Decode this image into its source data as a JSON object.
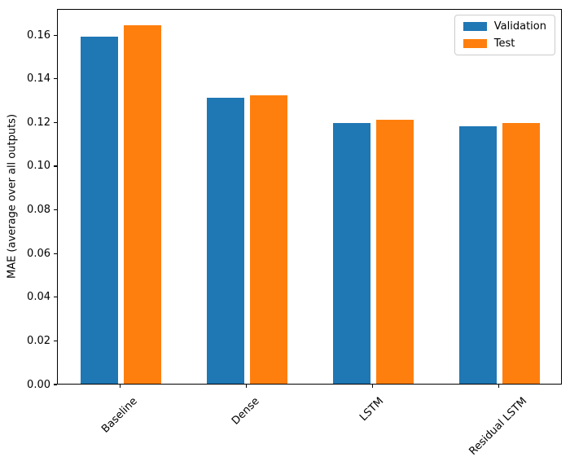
{
  "chart_data": {
    "type": "bar",
    "categories": [
      "Baseline",
      "Dense",
      "LSTM",
      "Residual LSTM"
    ],
    "series": [
      {
        "name": "Validation",
        "color": "#1f77b4",
        "values": [
          0.159,
          0.131,
          0.1195,
          0.118
        ]
      },
      {
        "name": "Test",
        "color": "#ff7f0e",
        "values": [
          0.164,
          0.132,
          0.121,
          0.1195
        ]
      }
    ],
    "ylabel": "MAE (average over all outputs)",
    "ylim": [
      0,
      0.172
    ],
    "yticks": [
      0.0,
      0.02,
      0.04,
      0.06,
      0.08,
      0.1,
      0.12,
      0.14,
      0.16
    ],
    "ytick_labels": [
      "0.00",
      "0.02",
      "0.04",
      "0.06",
      "0.08",
      "0.10",
      "0.12",
      "0.14",
      "0.16"
    ],
    "xtick_rotation_deg": 45,
    "grid": false,
    "legend_position": "upper right",
    "bar_width_frac": 0.3,
    "bar_offset_frac": 0.17
  }
}
